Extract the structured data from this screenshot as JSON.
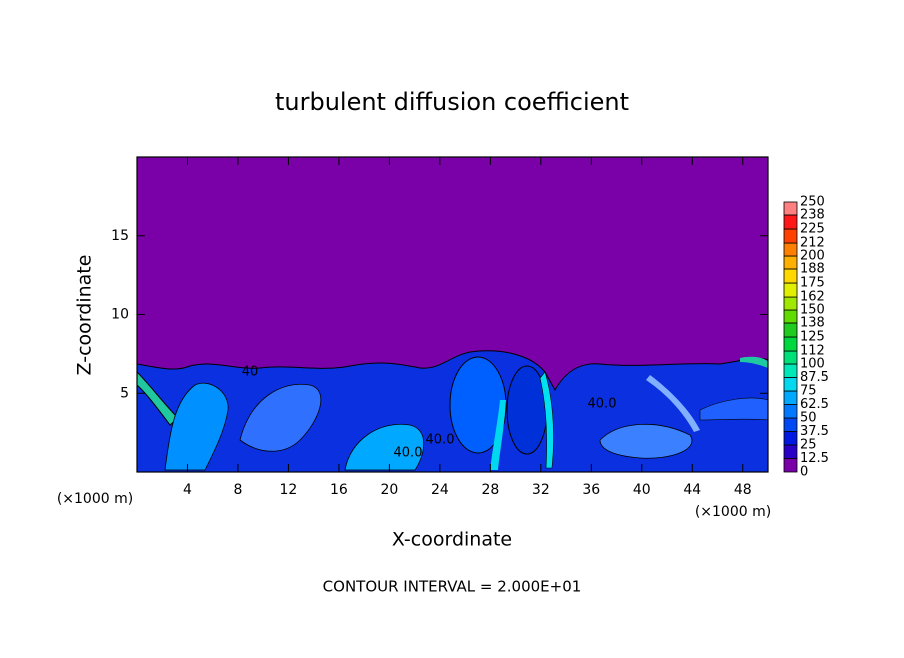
{
  "chart_data": {
    "type": "contour",
    "title": "turbulent diffusion coefficient",
    "x_label": "X-coordinate",
    "y_label": "Z-coordinate",
    "x_unit": "(×1000 m)",
    "footer": "CONTOUR INTERVAL = 2.000E+01",
    "contour_labels": [
      "40",
      "40.0",
      "40.0",
      "40.0"
    ],
    "xlim": [
      0,
      50
    ],
    "ylim": [
      0,
      20
    ],
    "xticks": [
      4,
      8,
      12,
      16,
      20,
      24,
      28,
      32,
      36,
      40,
      44,
      48
    ],
    "yticks": [
      5,
      10,
      15
    ],
    "levels": [
      0,
      12.5,
      25,
      37.5,
      50,
      62.5,
      75,
      87.5,
      100,
      112,
      125,
      138,
      150,
      162,
      175,
      188,
      200,
      212,
      225,
      238,
      250
    ],
    "level_colors": [
      "#7a00a8",
      "#2a00c8",
      "#0018e0",
      "#0048f4",
      "#0078ff",
      "#00a8ff",
      "#00d8f0",
      "#00e8b8",
      "#00e078",
      "#00d840",
      "#20cc20",
      "#60dc00",
      "#a0e800",
      "#e0f000",
      "#ffd800",
      "#ffb000",
      "#ff8000",
      "#ff4000",
      "#ff1818",
      "#ff8080"
    ]
  }
}
